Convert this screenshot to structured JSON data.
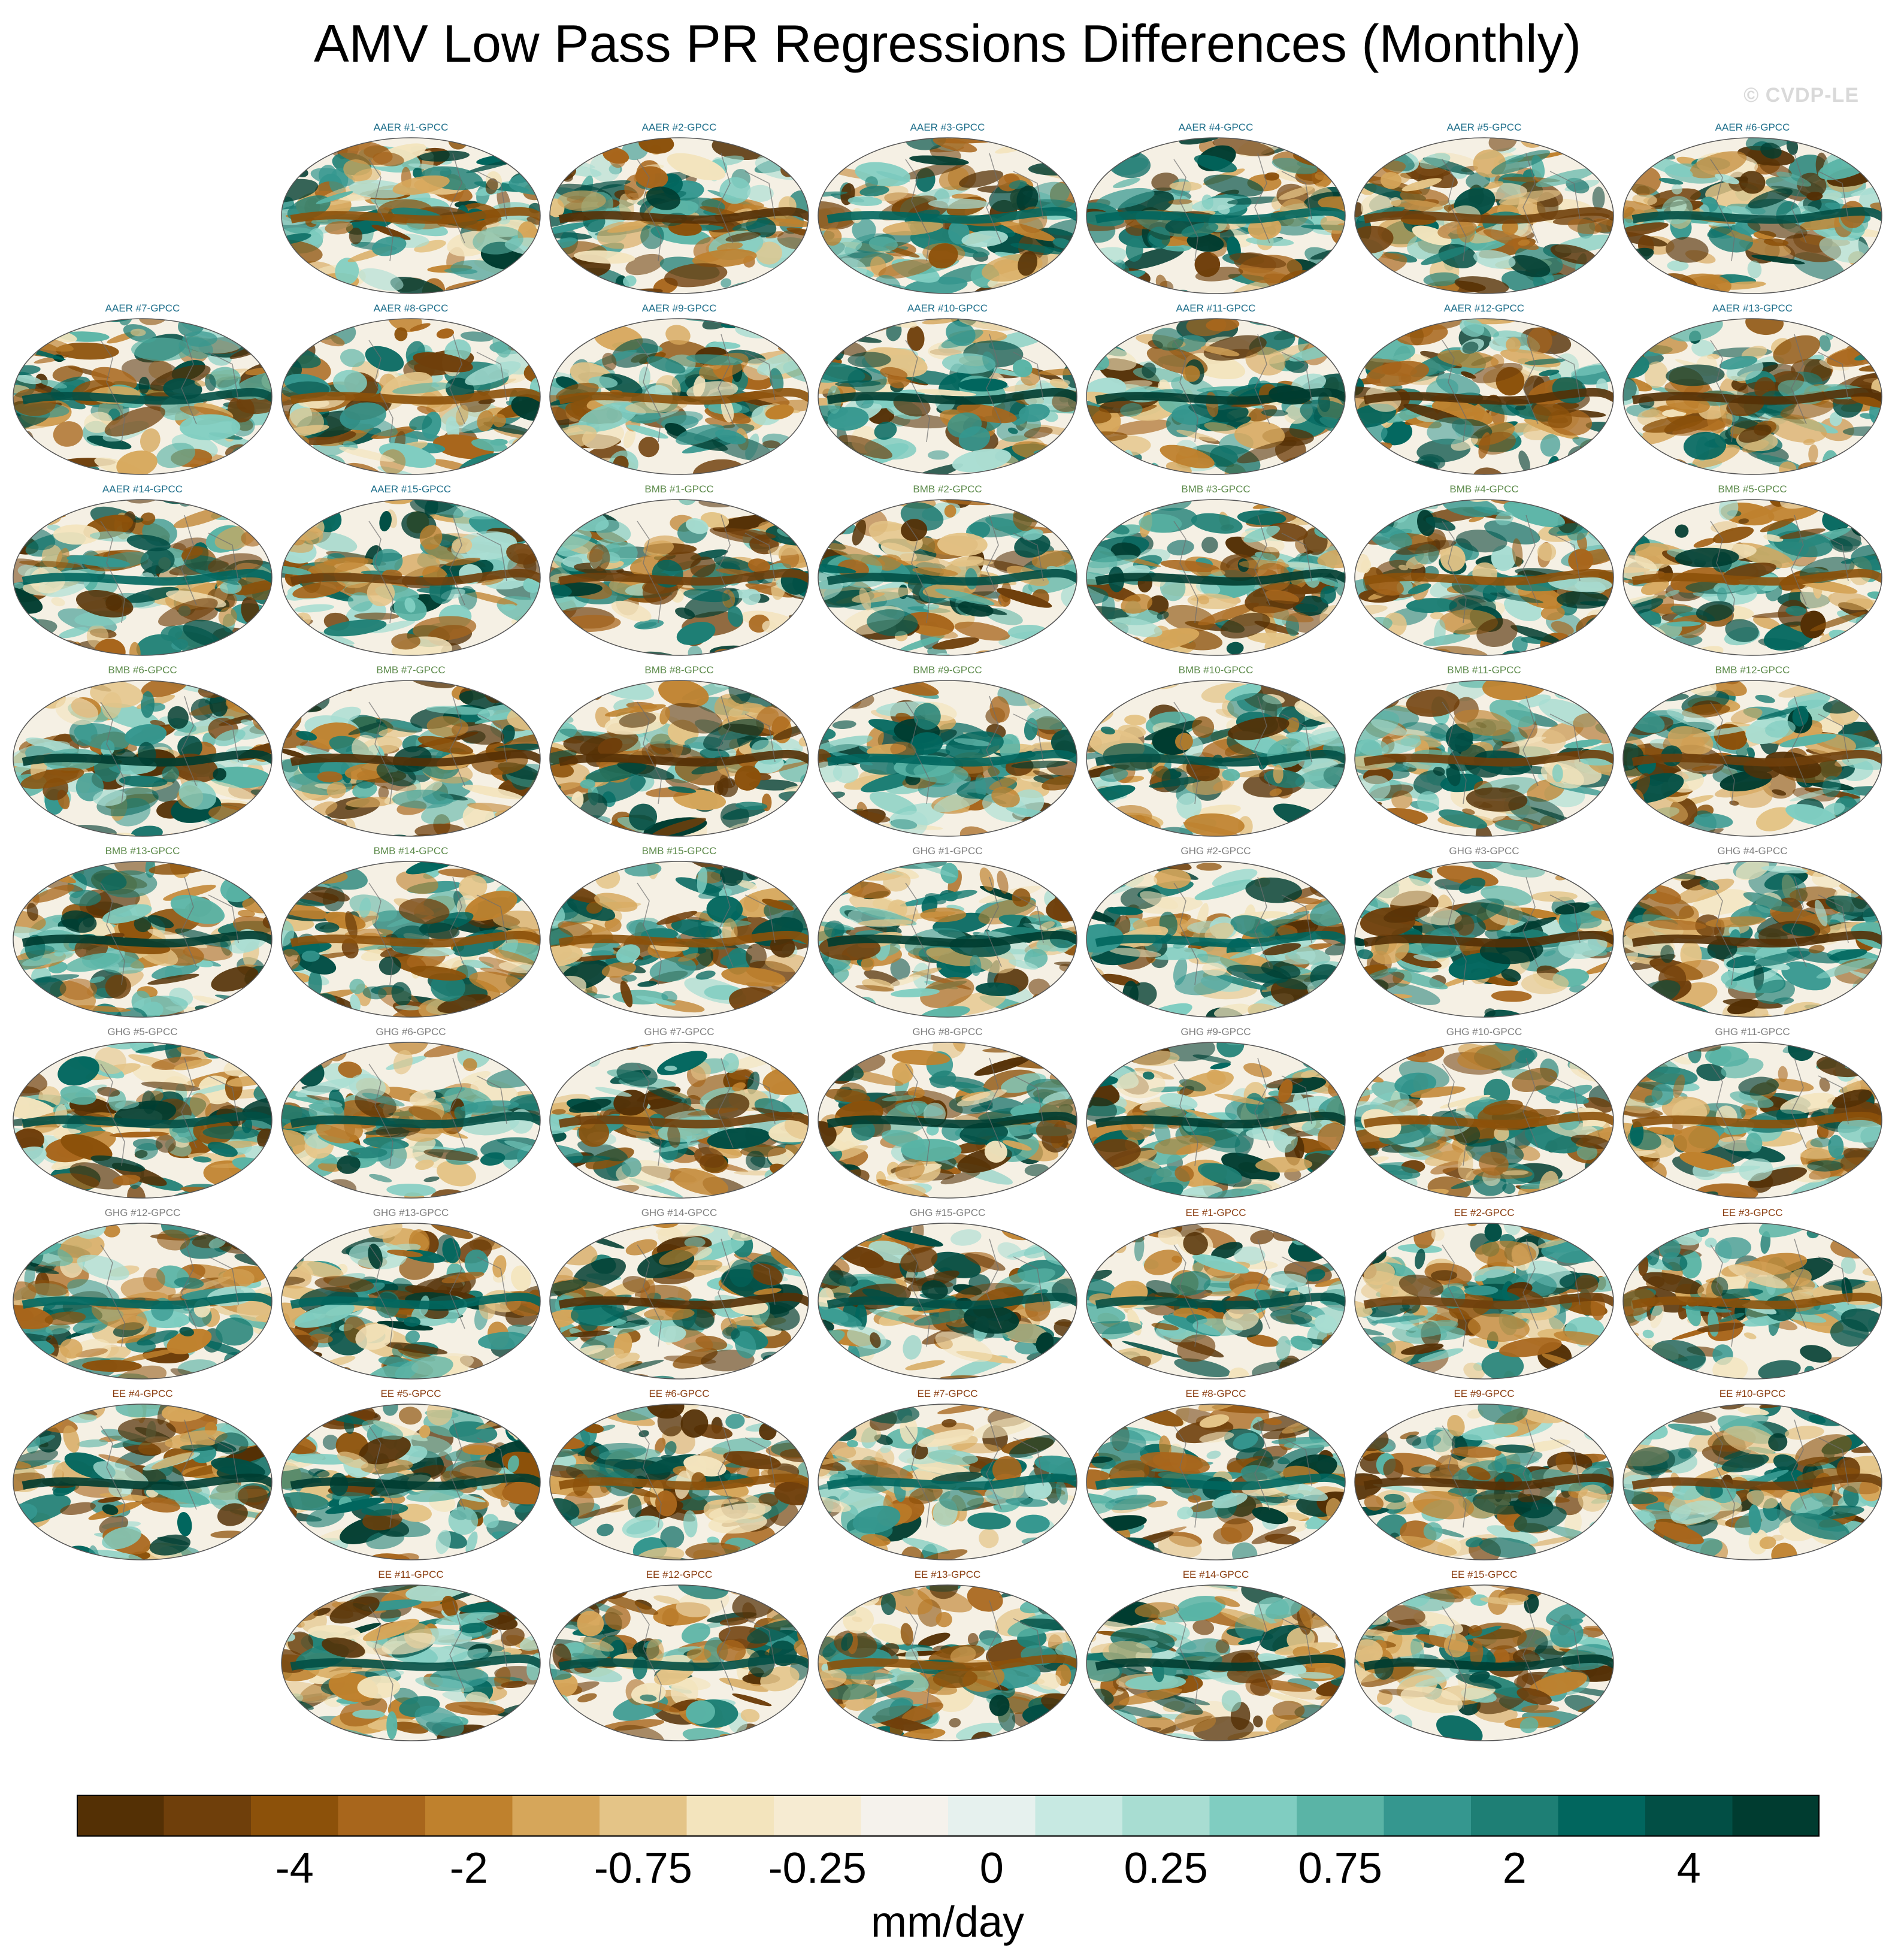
{
  "title": "AMV Low Pass PR Regressions Differences (Monthly)",
  "watermark": "© CVDP-LE",
  "group_colors": {
    "AAER": "#1f6f8b",
    "BMB": "#5c8a4a",
    "GHG": "#7f7f7f",
    "EE": "#8b3f12"
  },
  "panels": [
    {
      "label": "AAER #1-GPCC",
      "group": "AAER"
    },
    {
      "label": "AAER #2-GPCC",
      "group": "AAER"
    },
    {
      "label": "AAER #3-GPCC",
      "group": "AAER"
    },
    {
      "label": "AAER #4-GPCC",
      "group": "AAER"
    },
    {
      "label": "AAER #5-GPCC",
      "group": "AAER"
    },
    {
      "label": "AAER #6-GPCC",
      "group": "AAER"
    },
    {
      "label": "AAER #7-GPCC",
      "group": "AAER"
    },
    {
      "label": "AAER #8-GPCC",
      "group": "AAER"
    },
    {
      "label": "AAER #9-GPCC",
      "group": "AAER"
    },
    {
      "label": "AAER #10-GPCC",
      "group": "AAER"
    },
    {
      "label": "AAER #11-GPCC",
      "group": "AAER"
    },
    {
      "label": "AAER #12-GPCC",
      "group": "AAER"
    },
    {
      "label": "AAER #13-GPCC",
      "group": "AAER"
    },
    {
      "label": "AAER #14-GPCC",
      "group": "AAER"
    },
    {
      "label": "AAER #15-GPCC",
      "group": "AAER"
    },
    {
      "label": "BMB #1-GPCC",
      "group": "BMB"
    },
    {
      "label": "BMB #2-GPCC",
      "group": "BMB"
    },
    {
      "label": "BMB #3-GPCC",
      "group": "BMB"
    },
    {
      "label": "BMB #4-GPCC",
      "group": "BMB"
    },
    {
      "label": "BMB #5-GPCC",
      "group": "BMB"
    },
    {
      "label": "BMB #6-GPCC",
      "group": "BMB"
    },
    {
      "label": "BMB #7-GPCC",
      "group": "BMB"
    },
    {
      "label": "BMB #8-GPCC",
      "group": "BMB"
    },
    {
      "label": "BMB #9-GPCC",
      "group": "BMB"
    },
    {
      "label": "BMB #10-GPCC",
      "group": "BMB"
    },
    {
      "label": "BMB #11-GPCC",
      "group": "BMB"
    },
    {
      "label": "BMB #12-GPCC",
      "group": "BMB"
    },
    {
      "label": "BMB #13-GPCC",
      "group": "BMB"
    },
    {
      "label": "BMB #14-GPCC",
      "group": "BMB"
    },
    {
      "label": "BMB #15-GPCC",
      "group": "BMB"
    },
    {
      "label": "GHG #1-GPCC",
      "group": "GHG"
    },
    {
      "label": "GHG #2-GPCC",
      "group": "GHG"
    },
    {
      "label": "GHG #3-GPCC",
      "group": "GHG"
    },
    {
      "label": "GHG #4-GPCC",
      "group": "GHG"
    },
    {
      "label": "GHG #5-GPCC",
      "group": "GHG"
    },
    {
      "label": "GHG #6-GPCC",
      "group": "GHG"
    },
    {
      "label": "GHG #7-GPCC",
      "group": "GHG"
    },
    {
      "label": "GHG #8-GPCC",
      "group": "GHG"
    },
    {
      "label": "GHG #9-GPCC",
      "group": "GHG"
    },
    {
      "label": "GHG #10-GPCC",
      "group": "GHG"
    },
    {
      "label": "GHG #11-GPCC",
      "group": "GHG"
    },
    {
      "label": "GHG #12-GPCC",
      "group": "GHG"
    },
    {
      "label": "GHG #13-GPCC",
      "group": "GHG"
    },
    {
      "label": "GHG #14-GPCC",
      "group": "GHG"
    },
    {
      "label": "GHG #15-GPCC",
      "group": "GHG"
    },
    {
      "label": "EE #1-GPCC",
      "group": "EE"
    },
    {
      "label": "EE #2-GPCC",
      "group": "EE"
    },
    {
      "label": "EE #3-GPCC",
      "group": "EE"
    },
    {
      "label": "EE #4-GPCC",
      "group": "EE"
    },
    {
      "label": "EE #5-GPCC",
      "group": "EE"
    },
    {
      "label": "EE #6-GPCC",
      "group": "EE"
    },
    {
      "label": "EE #7-GPCC",
      "group": "EE"
    },
    {
      "label": "EE #8-GPCC",
      "group": "EE"
    },
    {
      "label": "EE #9-GPCC",
      "group": "EE"
    },
    {
      "label": "EE #10-GPCC",
      "group": "EE"
    },
    {
      "label": "EE #11-GPCC",
      "group": "EE"
    },
    {
      "label": "EE #12-GPCC",
      "group": "EE"
    },
    {
      "label": "EE #13-GPCC",
      "group": "EE"
    },
    {
      "label": "EE #14-GPCC",
      "group": "EE"
    },
    {
      "label": "EE #15-GPCC",
      "group": "EE"
    }
  ],
  "chart_data": {
    "type": "heatmap",
    "title": "AMV Low Pass PR Regressions Differences (Monthly)",
    "colorbar": {
      "units": "mm/day",
      "tick_labels": [
        "-4",
        "-2",
        "-0.75",
        "-0.25",
        "0",
        "0.25",
        "0.75",
        "2",
        "4"
      ],
      "colors": [
        "#543005",
        "#6f3f0b",
        "#8c510a",
        "#a8661c",
        "#bf812d",
        "#d6a65a",
        "#e4c487",
        "#f3e4bd",
        "#f6ebd2",
        "#f5f2ec",
        "#e6f1ee",
        "#c7e9e2",
        "#a8ddd2",
        "#80cdc1",
        "#5ab4a6",
        "#35978f",
        "#1e7f75",
        "#01665e",
        "#024f45",
        "#003c30"
      ]
    }
  }
}
